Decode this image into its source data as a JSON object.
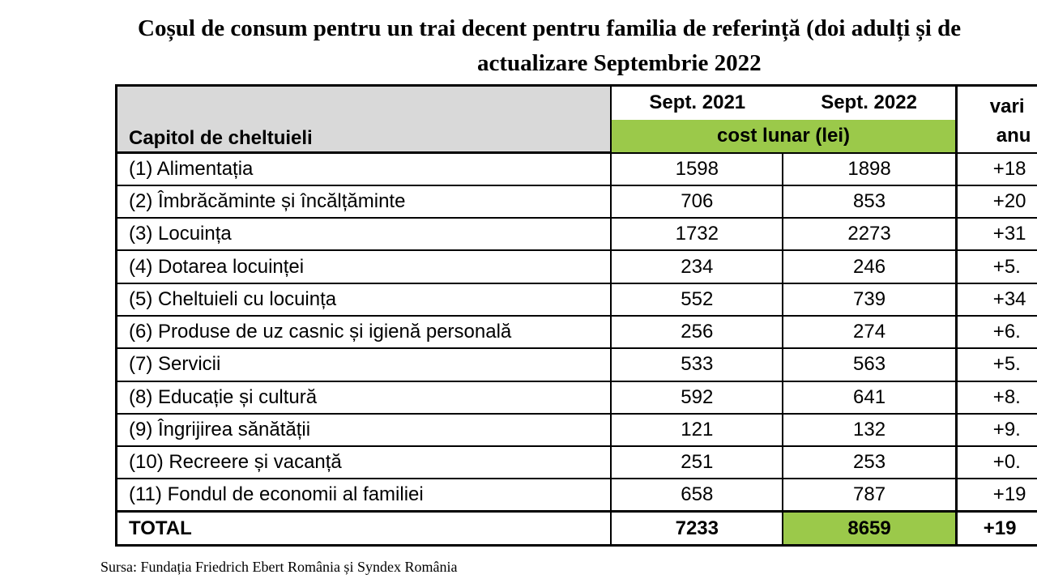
{
  "title": {
    "line1": "Coșul de consum pentru un trai decent pentru familia de referință (doi adulți și de",
    "line2": "actualizare Septembrie 2022"
  },
  "table": {
    "col_header": "Capitol de cheltuieli",
    "period_2021": "Sept. 2021",
    "period_2022": "Sept. 2022",
    "cost_header": "cost lunar (lei)",
    "variation_header_1": "vari",
    "variation_header_2": "anu",
    "rows": [
      {
        "label": "(1) Alimentația",
        "v2021": "1598",
        "v2022": "1898",
        "var": "+18"
      },
      {
        "label": "(2) Îmbrăcăminte și încălțăminte",
        "v2021": "706",
        "v2022": "853",
        "var": "+20"
      },
      {
        "label": "(3) Locuința",
        "v2021": "1732",
        "v2022": "2273",
        "var": "+31"
      },
      {
        "label": "(4) Dotarea locuinței",
        "v2021": "234",
        "v2022": "246",
        "var": "+5."
      },
      {
        "label": "(5) Cheltuieli cu locuința",
        "v2021": "552",
        "v2022": "739",
        "var": "+34"
      },
      {
        "label": "(6) Produse de uz casnic și igienă personală",
        "v2021": "256",
        "v2022": "274",
        "var": "+6."
      },
      {
        "label": "(7) Servicii",
        "v2021": "533",
        "v2022": "563",
        "var": "+5."
      },
      {
        "label": "(8) Educație și cultură",
        "v2021": "592",
        "v2022": "641",
        "var": "+8."
      },
      {
        "label": "(9) Îngrijirea sănătății",
        "v2021": "121",
        "v2022": "132",
        "var": "+9."
      },
      {
        "label": "(10) Recreere și vacanță",
        "v2021": "251",
        "v2022": "253",
        "var": "+0."
      },
      {
        "label": "(11) Fondul de economii al familiei",
        "v2021": "658",
        "v2022": "787",
        "var": "+19"
      }
    ],
    "total": {
      "label": "TOTAL",
      "v2021": "7233",
      "v2022": "8659",
      "var": "+19"
    }
  },
  "source": "Sursa: Fundația Friedrich Ebert România și Syndex România",
  "colors": {
    "header_gray": "#d9d9d9",
    "accent_green": "#9bc94a"
  }
}
